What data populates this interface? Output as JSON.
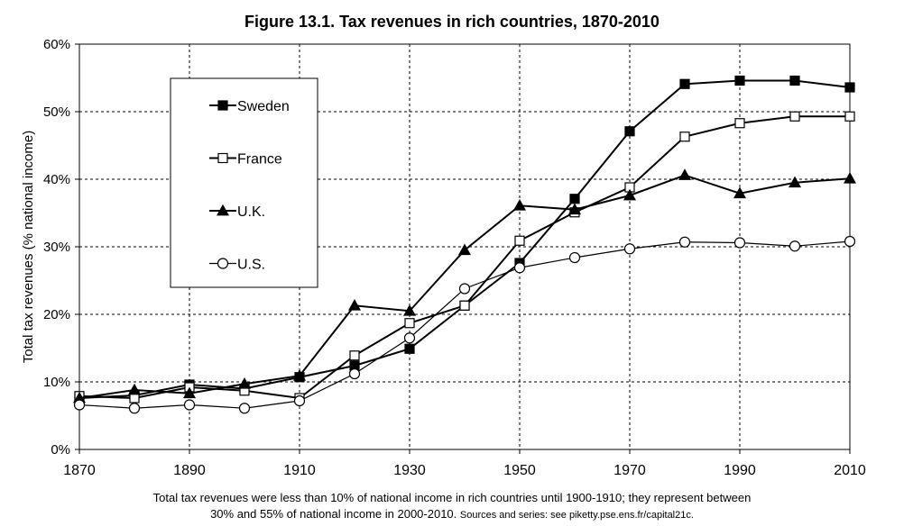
{
  "chart_data": {
    "type": "line",
    "title": "Figure 13.1. Tax revenues in rich countries, 1870-2010",
    "xlabel": "",
    "ylabel": "Total tax revenues (% national income)",
    "x_ticks": [
      "1870",
      "1890",
      "1910",
      "1930",
      "1950",
      "1970",
      "1990",
      "2010"
    ],
    "y_ticks": [
      "0%",
      "10%",
      "20%",
      "30%",
      "40%",
      "50%",
      "60%"
    ],
    "xlim": [
      1870,
      2010
    ],
    "ylim": [
      0,
      60
    ],
    "grid": true,
    "legend_position": "top-left",
    "x": [
      1870,
      1880,
      1890,
      1900,
      1910,
      1920,
      1930,
      1940,
      1950,
      1960,
      1970,
      1980,
      1990,
      2000,
      2010
    ],
    "series": [
      {
        "name": "Sweden",
        "marker": "filled-square",
        "color": "#000000",
        "values": [
          7.6,
          8.0,
          9.6,
          9.0,
          10.7,
          12.4,
          14.9,
          21.3,
          27.6,
          37.1,
          47.1,
          54.1,
          54.6,
          54.6,
          53.6
        ]
      },
      {
        "name": "France",
        "marker": "open-square",
        "color": "#000000",
        "values": [
          7.9,
          7.6,
          9.2,
          8.7,
          7.6,
          13.9,
          18.7,
          21.3,
          30.9,
          35.1,
          38.8,
          46.3,
          48.3,
          49.3,
          49.3
        ]
      },
      {
        "name": "U.K.",
        "marker": "filled-triangle",
        "color": "#000000",
        "values": [
          7.6,
          8.8,
          8.3,
          9.7,
          10.9,
          21.3,
          20.5,
          29.5,
          36.1,
          35.5,
          37.6,
          40.6,
          37.9,
          39.5,
          40.1
        ]
      },
      {
        "name": "U.S.",
        "marker": "open-circle",
        "color": "#000000",
        "values": [
          6.6,
          6.1,
          6.6,
          6.1,
          7.2,
          11.2,
          16.5,
          23.8,
          26.9,
          28.4,
          29.7,
          30.7,
          30.6,
          30.1,
          30.8
        ]
      }
    ]
  },
  "caption": {
    "line1": "Total tax revenues were less than 10% of national income in rich countries until 1900-1910; they represent between",
    "line2_main": "30% and 55% of national income in 2000-2010. ",
    "line2_small": "Sources and series: see piketty.pse.ens.fr/capital21c."
  }
}
